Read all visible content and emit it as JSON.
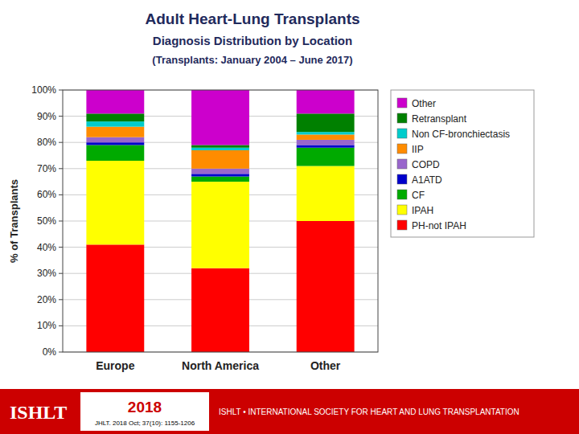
{
  "chart_data": {
    "type": "bar",
    "stacked": true,
    "title": "Adult Heart-Lung Transplants",
    "subtitle": [
      "Diagnosis Distribution by Location",
      "(Transplants: January 2004 – June 2017)"
    ],
    "y_label": "% of Transplants",
    "categories": [
      "Europe",
      "North America",
      "Other"
    ],
    "series": [
      {
        "name": "PH-not IPAH",
        "color": "#FF0000",
        "values": [
          41,
          32,
          50
        ]
      },
      {
        "name": "IPAH",
        "color": "#FFFF00",
        "values": [
          32,
          33,
          21
        ]
      },
      {
        "name": "CF",
        "color": "#00AA00",
        "values": [
          6,
          2,
          7
        ]
      },
      {
        "name": "A1ATD",
        "color": "#0000CC",
        "values": [
          1,
          1,
          1
        ]
      },
      {
        "name": "COPD",
        "color": "#9966CC",
        "values": [
          2,
          2,
          2
        ]
      },
      {
        "name": "IIP",
        "color": "#FF8C00",
        "values": [
          4,
          7,
          2
        ]
      },
      {
        "name": "Non CF-bronchiectasis",
        "color": "#00CCCC",
        "values": [
          2,
          1,
          1
        ]
      },
      {
        "name": "Retransplant",
        "color": "#008000",
        "values": [
          3,
          1,
          7
        ]
      },
      {
        "name": "Other",
        "color": "#CC00CC",
        "values": [
          9,
          21,
          9
        ]
      }
    ],
    "ylim": [
      0,
      100
    ],
    "yticks": [
      {
        "value": 0,
        "label": "0%"
      },
      {
        "value": 10,
        "label": "10%"
      },
      {
        "value": 20,
        "label": "20%"
      },
      {
        "value": 30,
        "label": "30%"
      },
      {
        "value": 40,
        "label": "40%"
      },
      {
        "value": 50,
        "label": "50%"
      },
      {
        "value": 60,
        "label": "60%"
      },
      {
        "value": 70,
        "label": "70%"
      },
      {
        "value": 80,
        "label": "80%"
      },
      {
        "value": 90,
        "label": "90%"
      },
      {
        "value": 100,
        "label": "100%"
      }
    ],
    "grid": true,
    "legend": "right",
    "annotations": [
      "ISHLT",
      "2018",
      "JHLT. 2018 Oct; 37(10): 1155-1206",
      "ISHLT • INTERNATIONAL SOCIETY FOR HEART AND LUNG TRANSPLANTATION"
    ]
  }
}
